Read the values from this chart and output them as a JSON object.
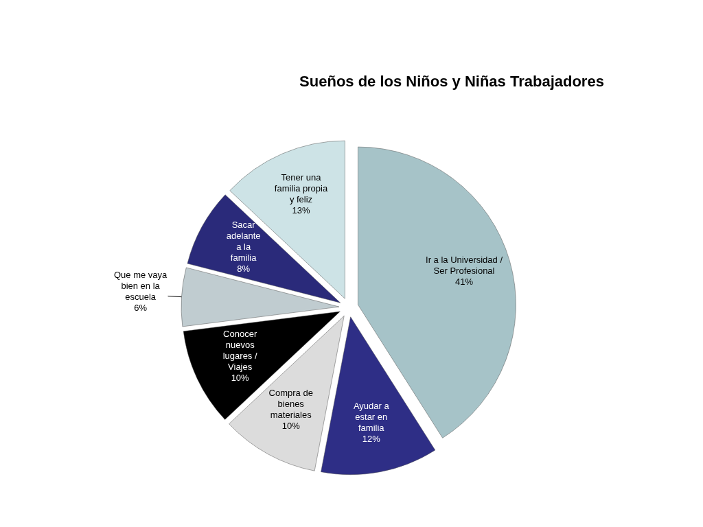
{
  "chart_data": {
    "type": "pie",
    "title": "Sueños de los Niños y Niñas Trabajadores",
    "categories": [
      "Ir a la Universidad / Ser Profesional",
      "Ayudar a estar en familia",
      "Compra de bienes materiales",
      "Conocer nuevos lugares / Viajes",
      "Que me vaya bien en la escuela",
      "Sacar adelante a la familia",
      "Tener una familia propia y feliz"
    ],
    "values": [
      41,
      12,
      10,
      10,
      6,
      8,
      13
    ],
    "value_labels": [
      "41%",
      "12%",
      "10%",
      "10%",
      "6%",
      "8%",
      "13%"
    ],
    "colors": [
      "#a6c3c8",
      "#2e2e86",
      "#dcdcdc",
      "#000000",
      "#c0ccd0",
      "#2a2a7a",
      "#cde3e6"
    ]
  }
}
